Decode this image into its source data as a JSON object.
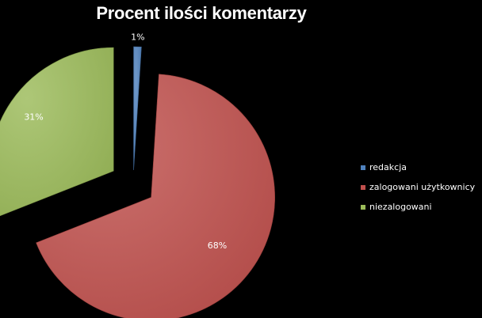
{
  "chart_data": {
    "type": "pie",
    "title": "Procent ilości komentarzy",
    "categories": [
      "redakcja",
      "zalogowani użytkownicy",
      "niezalogowani"
    ],
    "values": [
      1,
      68,
      31
    ],
    "labels": [
      "1%",
      "68%",
      "31%"
    ],
    "colors": [
      "#4F81BD",
      "#C0504D",
      "#9BBB59"
    ],
    "exploded": true,
    "legend": "right"
  }
}
